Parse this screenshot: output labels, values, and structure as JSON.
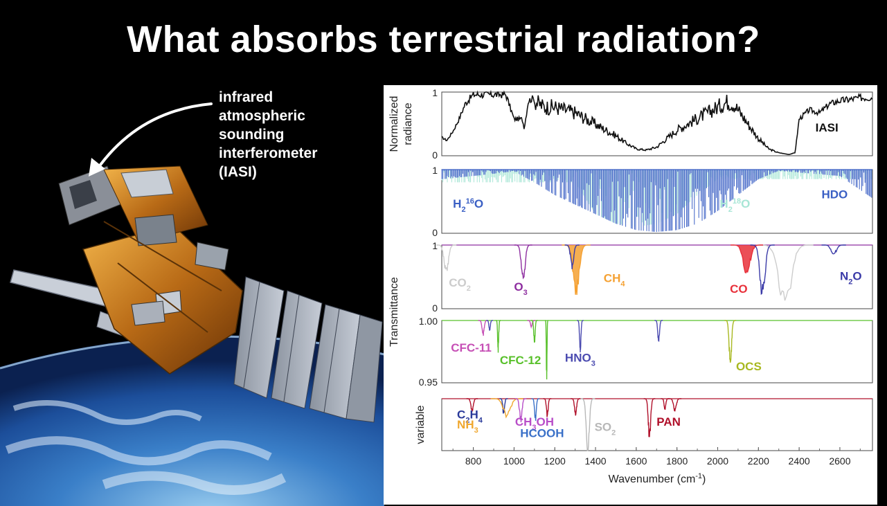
{
  "title": "What absorbs terrestrial radiation?",
  "annotation": {
    "lines": [
      "infrared",
      "atmospheric",
      "sounding",
      "interferometer",
      "(IASI)"
    ]
  },
  "colors": {
    "iasi": "#111111",
    "h2o": "#3a5fc4",
    "h218o": "#a8e6d6",
    "co2": "#cccccc",
    "o3": "#8e2ea0",
    "ch4": "#f5a132",
    "co": "#e8303a",
    "n2o": "#3b3ba8",
    "cfc11": "#c64fb5",
    "cfc12": "#58c02a",
    "hno3": "#4b4bb0",
    "ocs": "#a8b820",
    "c2h4": "#2a3a9a",
    "nh3": "#f0a830",
    "ch3oh": "#b84ec8",
    "hcooh": "#3a70c8",
    "so2": "#b8b8b8",
    "pan": "#b0102a",
    "background": "#000000"
  },
  "chart_data": [
    {
      "type": "line",
      "panel": "IASI",
      "ylabel": [
        "Normalized",
        "radiance"
      ],
      "yticks": [
        "1",
        "0"
      ],
      "ylim": [
        0,
        1
      ],
      "xlim": [
        645,
        2760
      ],
      "series": [
        {
          "name": "IASI",
          "x": [
            645,
            670,
            700,
            730,
            760,
            800,
            900,
            960,
            1000,
            1040,
            1050,
            1070,
            1100,
            1150,
            1200,
            1250,
            1300,
            1350,
            1400,
            1450,
            1500,
            1550,
            1600,
            1650,
            1700,
            1750,
            1800,
            1850,
            1900,
            1950,
            2000,
            2050,
            2080,
            2100,
            2150,
            2200,
            2250,
            2300,
            2350,
            2380,
            2400,
            2450,
            2500,
            2550,
            2600,
            2650,
            2700,
            2760
          ],
          "values": [
            0.3,
            0.25,
            0.4,
            0.6,
            0.85,
            1.0,
            1.0,
            1.0,
            0.6,
            0.6,
            0.45,
            0.9,
            0.95,
            0.85,
            0.85,
            0.8,
            0.75,
            0.65,
            0.55,
            0.45,
            0.35,
            0.22,
            0.12,
            0.1,
            0.15,
            0.3,
            0.45,
            0.55,
            0.65,
            0.75,
            0.85,
            0.95,
            0.9,
            0.8,
            0.55,
            0.3,
            0.12,
            0.05,
            0.02,
            0.05,
            0.6,
            0.75,
            0.7,
            0.85,
            0.9,
            0.92,
            0.95,
            0.95
          ]
        }
      ],
      "labels": [
        {
          "text": "IASI",
          "x": 2480,
          "y": 0.38,
          "color": "#111111"
        }
      ]
    },
    {
      "type": "line",
      "panel": "H2O",
      "yticks": [
        "1",
        "0"
      ],
      "ylim": [
        0,
        1
      ],
      "series": [
        {
          "name": "H2 18O",
          "x": [
            1300,
            1400,
            1500,
            1600,
            1700,
            1800,
            1900,
            2000
          ],
          "values": [
            0.8,
            0.3,
            0.15,
            0.1,
            0.15,
            0.3,
            0.6,
            0.85
          ]
        },
        {
          "name": "H2 16O",
          "x": [
            645,
            800,
            1000,
            1100,
            1200,
            1300,
            1400,
            1500,
            1600,
            1700,
            1800,
            1900,
            2000,
            2100,
            2200,
            2300,
            2600,
            2760
          ],
          "values": [
            0.85,
            0.9,
            0.97,
            0.8,
            0.6,
            0.45,
            0.3,
            0.15,
            0.05,
            0.02,
            0.05,
            0.15,
            0.35,
            0.6,
            0.85,
            0.98,
            0.9,
            0.55
          ]
        }
      ],
      "labels": [
        {
          "text": "H",
          "sub": "2",
          "sup": "16",
          "tail": "O",
          "x": 700,
          "y": 0.4,
          "color": "#3a5fc4"
        },
        {
          "text": "H",
          "sub": "2",
          "sup": "18",
          "tail": "O",
          "x": 2010,
          "y": 0.4,
          "color": "#a8e6d6"
        },
        {
          "text": "HDO",
          "x": 2510,
          "y": 0.55,
          "color": "#3a5fc4"
        }
      ]
    },
    {
      "type": "line",
      "panel": "Transmittance",
      "ylabel": "Transmittance",
      "yticks": [
        "1",
        "0"
      ],
      "ylim": [
        0,
        1
      ],
      "bands": [
        {
          "name": "CO2",
          "center": 667,
          "width": 25,
          "depth": 0.45,
          "color": "#cccccc"
        },
        {
          "name": "CO2",
          "center": 2330,
          "width": 70,
          "depth": 0.98,
          "color": "#cccccc"
        },
        {
          "name": "O3",
          "center": 1045,
          "width": 22,
          "depth": 0.55,
          "color": "#8e2ea0"
        },
        {
          "name": "CH4",
          "center": 1305,
          "width": 35,
          "depth": 0.75,
          "color": "#f5a132"
        },
        {
          "name": "CO",
          "center": 2143,
          "width": 40,
          "depth": 0.45,
          "color": "#e8303a"
        },
        {
          "name": "N2O",
          "center": 1285,
          "width": 18,
          "depth": 0.35,
          "color": "#3b3ba8"
        },
        {
          "name": "N2O",
          "center": 2220,
          "width": 30,
          "depth": 0.8,
          "color": "#3b3ba8"
        },
        {
          "name": "N2O",
          "center": 2570,
          "width": 30,
          "depth": 0.15,
          "color": "#3b3ba8"
        }
      ],
      "labels": [
        {
          "text": "CO",
          "sub": "2",
          "x": 680,
          "y": 0.35,
          "color": "#cccccc"
        },
        {
          "text": "O",
          "sub": "3",
          "x": 1000,
          "y": 0.28,
          "color": "#8e2ea0"
        },
        {
          "text": "CH",
          "sub": "4",
          "x": 1440,
          "y": 0.42,
          "color": "#f5a132"
        },
        {
          "text": "CO",
          "x": 2060,
          "y": 0.25,
          "color": "#e8303a"
        },
        {
          "text": "N",
          "sub": "2",
          "tail": "O",
          "x": 2600,
          "y": 0.45,
          "color": "#3b3ba8"
        }
      ]
    },
    {
      "type": "line",
      "panel": "trace",
      "yticks": [
        "1.00",
        "0.95"
      ],
      "ylim": [
        0.95,
        1.0
      ],
      "bands": [
        {
          "name": "CFC-11",
          "center": 848,
          "width": 12,
          "depth": 0.012,
          "color": "#c64fb5"
        },
        {
          "name": "CFC-11",
          "center": 1085,
          "width": 10,
          "depth": 0.005,
          "color": "#c64fb5"
        },
        {
          "name": "CFC-12",
          "center": 922,
          "width": 6,
          "depth": 0.025,
          "color": "#58c02a"
        },
        {
          "name": "CFC-12",
          "center": 1100,
          "width": 8,
          "depth": 0.018,
          "color": "#58c02a"
        },
        {
          "name": "CFC-12",
          "center": 1160,
          "width": 4,
          "depth": 0.048,
          "color": "#58c02a"
        },
        {
          "name": "HNO3",
          "center": 880,
          "width": 8,
          "depth": 0.008,
          "color": "#4b4bb0"
        },
        {
          "name": "HNO3",
          "center": 1325,
          "width": 8,
          "depth": 0.025,
          "color": "#4b4bb0"
        },
        {
          "name": "HNO3",
          "center": 1710,
          "width": 10,
          "depth": 0.018,
          "color": "#4b4bb0"
        },
        {
          "name": "OCS",
          "center": 2062,
          "width": 14,
          "depth": 0.036,
          "color": "#a8b820"
        }
      ],
      "labels": [
        {
          "text": "CFC-11",
          "x": 690,
          "y": 0.975,
          "color": "#c64fb5"
        },
        {
          "text": "CFC-12",
          "x": 930,
          "y": 0.965,
          "color": "#58c02a"
        },
        {
          "text": "HNO",
          "sub": "3",
          "x": 1250,
          "y": 0.967,
          "color": "#4b4bb0"
        },
        {
          "text": "OCS",
          "x": 2090,
          "y": 0.96,
          "color": "#a8b820"
        }
      ]
    },
    {
      "type": "line",
      "panel": "variable",
      "ylabel": "variable",
      "ylim": [
        0,
        1
      ],
      "xticks": [
        800,
        1000,
        1200,
        1400,
        1600,
        1800,
        2000,
        2200,
        2400,
        2600
      ],
      "xlabel": "Wavenumber (cm",
      "xlabel_sup": "-1",
      "xlabel_tail": ")",
      "bands": [
        {
          "name": "C2H4",
          "center": 949,
          "width": 10,
          "depth": 0.3,
          "color": "#2a3a9a"
        },
        {
          "name": "NH3",
          "center": 965,
          "width": 40,
          "depth": 0.35,
          "color": "#f0a830"
        },
        {
          "name": "CH3OH",
          "center": 1033,
          "width": 14,
          "depth": 0.45,
          "color": "#b84ec8"
        },
        {
          "name": "HCOOH",
          "center": 1105,
          "width": 10,
          "depth": 0.4,
          "color": "#3a70c8"
        },
        {
          "name": "SO2",
          "center": 1362,
          "width": 18,
          "depth": 0.95,
          "color": "#b8b8b8"
        },
        {
          "name": "PAN",
          "center": 794,
          "width": 14,
          "depth": 0.25,
          "color": "#b0102a"
        },
        {
          "name": "PAN",
          "center": 1163,
          "width": 10,
          "depth": 0.35,
          "color": "#b0102a"
        },
        {
          "name": "PAN",
          "center": 1302,
          "width": 12,
          "depth": 0.3,
          "color": "#b0102a"
        },
        {
          "name": "PAN",
          "center": 1741,
          "width": 10,
          "depth": 0.2,
          "color": "#b0102a"
        },
        {
          "name": "PAN",
          "center": 1790,
          "width": 16,
          "depth": 0.25,
          "color": "#b0102a"
        },
        {
          "name": "PAN",
          "center": 1665,
          "width": 14,
          "depth": 0.75,
          "color": "#b0102a"
        }
      ],
      "labels": [
        {
          "text": "C",
          "sub": "2",
          "tail": "H",
          "sub2": "4",
          "x": 720,
          "y": 0.62,
          "color": "#2a3a9a"
        },
        {
          "text": "NH",
          "sub": "3",
          "x": 720,
          "y": 0.43,
          "color": "#f0a830"
        },
        {
          "text": "CH",
          "sub": "3",
          "tail": "OH",
          "x": 1005,
          "y": 0.48,
          "color": "#b84ec8"
        },
        {
          "text": "HCOOH",
          "x": 1030,
          "y": 0.26,
          "color": "#3a70c8"
        },
        {
          "text": "SO",
          "sub": "2",
          "x": 1395,
          "y": 0.38,
          "color": "#b8b8b8"
        },
        {
          "text": "PAN",
          "x": 1700,
          "y": 0.48,
          "color": "#b0102a"
        }
      ]
    }
  ]
}
